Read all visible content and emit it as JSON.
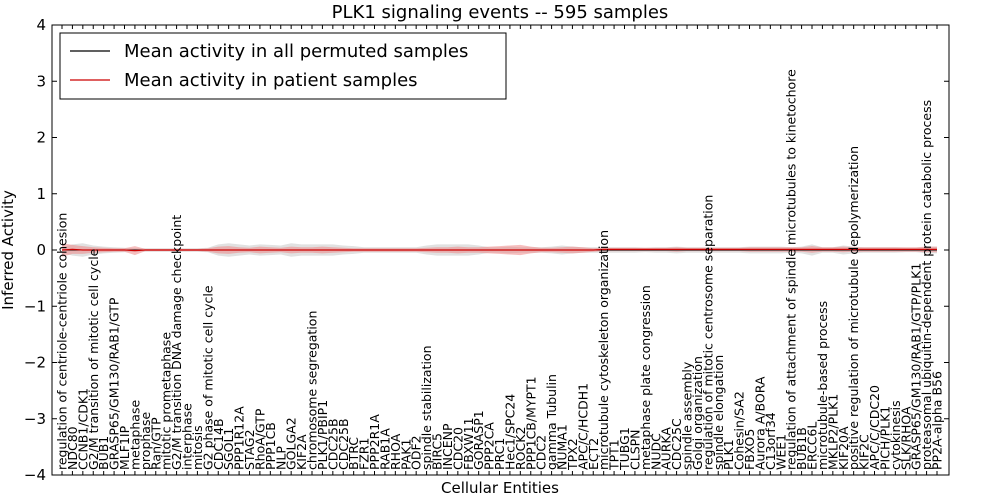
{
  "chart_data": {
    "type": "line",
    "title": "PLK1 signaling events -- 595 samples",
    "xlabel": "Cellular Entities",
    "ylabel": "Inferred Activity",
    "ylim": [
      -4,
      4
    ],
    "yticks": [
      -4,
      -3,
      -2,
      -1,
      0,
      1,
      2,
      3,
      4
    ],
    "grid": false,
    "legend_position": "top-left",
    "categories": [
      "regulation of centriole-centriole cohesion",
      "NDC80",
      "CCNB1/CDK1",
      "G2/M transition of mitotic cell cycle",
      "BUB1",
      "GRASP65/GM130/RAB1/GTP",
      "MLF1IP",
      "metaphase",
      "prophase",
      "Ran/GTP",
      "mitotic prometaphase",
      "G2/M transition DNA damage checkpoint",
      "interphase",
      "mitosis",
      "G2 phase of mitotic cell cycle",
      "CDC14B",
      "SGOL1",
      "PPP1R12A",
      "STAG2",
      "RhoA/GTP",
      "PPP1CB",
      "NLP",
      "GOLGA2",
      "KIF2A",
      "chromosome segregation",
      "PLK1/PBIP1",
      "CDC25B",
      "CDC25B",
      "BTRC",
      "FZR1",
      "PPP2R1A",
      "RAB1A",
      "RHOA",
      "PAK1",
      "ODF2",
      "spindle stabilization",
      "BIRC5",
      "INCENP",
      "CDC20",
      "FBXW11",
      "GORASP1",
      "PPP2CA",
      "PRC1",
      "Hec1/SPC24",
      "ROCK2",
      "PPP1CB/MYPT1",
      "CDC2",
      "gamma Tubulin",
      "NUMA1",
      "TPX2",
      "APC/C/HCDH1",
      "ECT2",
      "microtubule cytoskeleton organization",
      "TPT1",
      "TUBG1",
      "CLSPN",
      "metaphase plate congression",
      "NUDC",
      "AURKA",
      "CDC25C",
      "spindle assembly",
      "Golgi organization",
      "regulation of mitotic centrosome separation",
      "spindle elongation",
      "PLK1",
      "Cohesin/SA2",
      "FBXO5",
      "Aurora A/BORA",
      "C13orf34",
      "WEE1",
      "regulation of attachment of spindle microtubules to kinetochore",
      "BUB1B",
      "ERCC6L",
      "microtubule-based process",
      "MKLP2/PLK1",
      "KIF20A",
      "positive regulation of microtubule depolymerization",
      "KIF2C",
      "APC/C/CDC20",
      "PICH/PLK1",
      "cytokinesis",
      "SLK/RHOA",
      "GRASP65/GM130/RAB1/GTP/PLK1",
      "proteasomal ubiquitin-dependent protein catabolic process",
      "PP2A-alpha B56"
    ],
    "series": [
      {
        "name": "Mean activity in all permuted samples",
        "color": "#000000",
        "values": [
          0,
          0,
          0,
          0,
          0,
          0,
          0,
          0,
          0,
          0,
          0,
          0,
          0,
          0,
          0,
          0,
          0,
          0,
          0,
          0,
          0,
          0,
          0,
          0,
          0,
          0,
          0,
          0,
          0,
          0,
          0,
          0,
          0,
          0,
          0,
          0,
          0,
          0,
          0,
          0,
          0,
          0,
          0,
          0,
          0,
          0,
          0,
          0,
          0,
          0,
          0,
          0,
          0,
          0,
          0,
          0,
          0,
          0,
          0,
          0,
          0,
          0,
          0,
          0,
          0,
          0,
          0,
          0,
          0,
          0,
          0,
          0,
          0,
          0,
          0,
          0,
          0,
          0,
          0,
          0,
          0,
          0,
          0,
          0,
          0
        ]
      },
      {
        "name": "Mean activity in patient samples",
        "color": "#cc0000",
        "values": [
          0,
          0.01,
          0,
          0,
          0,
          0,
          0,
          -0.01,
          0,
          0,
          0,
          0,
          0,
          0,
          0,
          0,
          0,
          0,
          0,
          0,
          0,
          0,
          0,
          0,
          0,
          0,
          0,
          0,
          0,
          0,
          0,
          0,
          0,
          0,
          0,
          0,
          0,
          0,
          0,
          0,
          0,
          0,
          0,
          0,
          0,
          0,
          0,
          0,
          0,
          0,
          0,
          0,
          0.01,
          0.01,
          0.01,
          0.01,
          0.01,
          0.01,
          0.01,
          0.01,
          0.01,
          0.01,
          0.01,
          0.01,
          0.01,
          0.01,
          0.01,
          0.01,
          0.01,
          0.01,
          0.01,
          0.01,
          0.01,
          0.01,
          0.01,
          0.01,
          0.01,
          0.01,
          0.01,
          0.01,
          0.01,
          0.01,
          0.01,
          0.01,
          0.01
        ]
      }
    ],
    "bands": {
      "permuted_halfwidth": [
        0.05,
        0.1,
        0.12,
        0.08,
        0.06,
        0.05,
        0.04,
        0.03,
        0.03,
        0.03,
        0.03,
        0.03,
        0.03,
        0.03,
        0.04,
        0.1,
        0.12,
        0.1,
        0.08,
        0.1,
        0.09,
        0.08,
        0.12,
        0.1,
        0.1,
        0.1,
        0.1,
        0.08,
        0.07,
        0.05,
        0.05,
        0.05,
        0.05,
        0.05,
        0.05,
        0.08,
        0.1,
        0.1,
        0.1,
        0.1,
        0.08,
        0.05,
        0.05,
        0.06,
        0.05,
        0.05,
        0.05,
        0.06,
        0.08,
        0.06,
        0.05,
        0.05,
        0.05,
        0.05,
        0.05,
        0.05,
        0.04,
        0.05,
        0.05,
        0.06,
        0.05,
        0.05,
        0.05,
        0.05,
        0.05,
        0.05,
        0.06,
        0.06,
        0.06,
        0.06,
        0.05,
        0.06,
        0.1,
        0.05,
        0.05,
        0.08,
        0.06,
        0.05,
        0.05,
        0.05,
        0.05,
        0.04,
        0.04,
        0.06,
        0.06
      ],
      "patient_halfwidth": [
        0.12,
        0.08,
        0.07,
        0.05,
        0.04,
        0.03,
        0.03,
        0.08,
        0.02,
        0.02,
        0.02,
        0.02,
        0.02,
        0.02,
        0.03,
        0.06,
        0.07,
        0.05,
        0.04,
        0.06,
        0.05,
        0.04,
        0.06,
        0.05,
        0.05,
        0.06,
        0.05,
        0.04,
        0.03,
        0.03,
        0.03,
        0.03,
        0.03,
        0.03,
        0.03,
        0.04,
        0.05,
        0.05,
        0.06,
        0.05,
        0.05,
        0.06,
        0.07,
        0.08,
        0.09,
        0.06,
        0.04,
        0.04,
        0.05,
        0.06,
        0.05,
        0.03,
        0.03,
        0.03,
        0.03,
        0.03,
        0.03,
        0.03,
        0.03,
        0.04,
        0.03,
        0.03,
        0.03,
        0.03,
        0.03,
        0.03,
        0.04,
        0.04,
        0.04,
        0.04,
        0.04,
        0.04,
        0.06,
        0.04,
        0.04,
        0.05,
        0.04,
        0.04,
        0.04,
        0.04,
        0.04,
        0.04,
        0.04,
        0.05,
        0.05
      ]
    }
  }
}
